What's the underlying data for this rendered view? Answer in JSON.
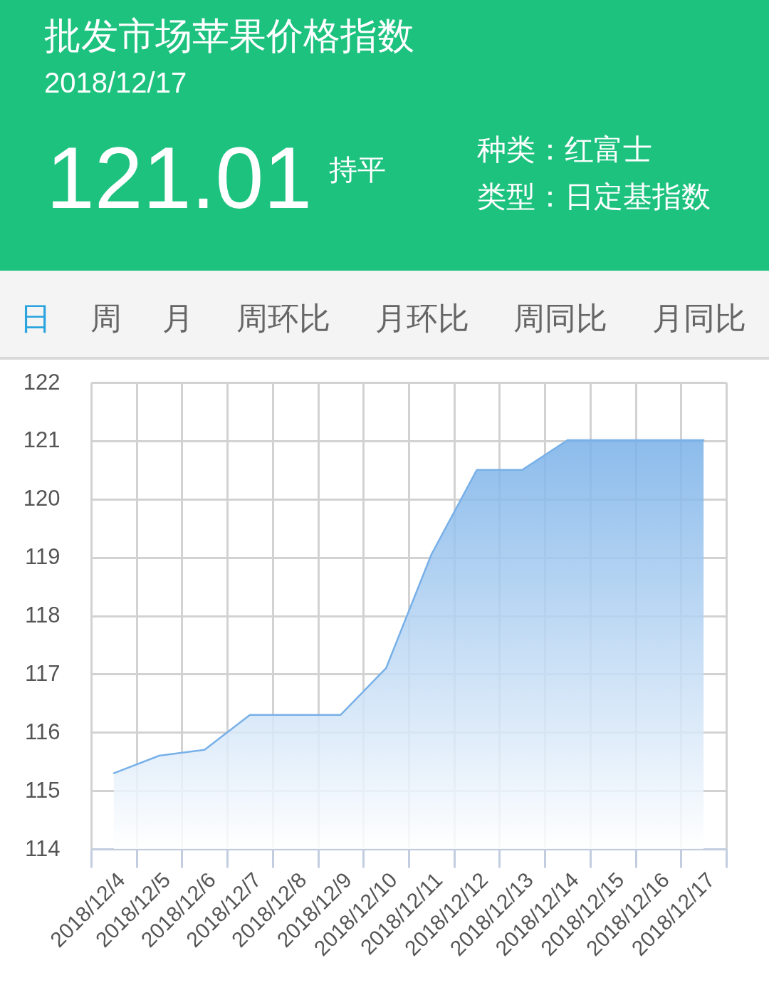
{
  "chart_data": {
    "type": "area",
    "title": "批发市场苹果价格指数",
    "subtitle": "2018/12/17",
    "annotations": [
      "121.01",
      "持平",
      "种类：红富士",
      "类型：日定基指数",
      "日",
      "周",
      "月",
      "周环比",
      "月环比",
      "周同比",
      "月同比"
    ],
    "categories": [
      "2018/12/4",
      "2018/12/5",
      "2018/12/6",
      "2018/12/7",
      "2018/12/8",
      "2018/12/9",
      "2018/12/10",
      "2018/12/11",
      "2018/12/12",
      "2018/12/13",
      "2018/12/14",
      "2018/12/15",
      "2018/12/16",
      "2018/12/17"
    ],
    "series": [
      {
        "color": "#78b0e8",
        "values": [
          115.3,
          115.6,
          115.7,
          116.3,
          116.3,
          116.3,
          117.1,
          119.05,
          120.5,
          120.5,
          121.01,
          121.01,
          121.01,
          121.01
        ]
      }
    ],
    "ylim": [
      114,
      122
    ],
    "yticks": [
      114,
      115,
      116,
      117,
      118,
      119,
      120,
      121,
      122
    ],
    "grid": true
  }
}
